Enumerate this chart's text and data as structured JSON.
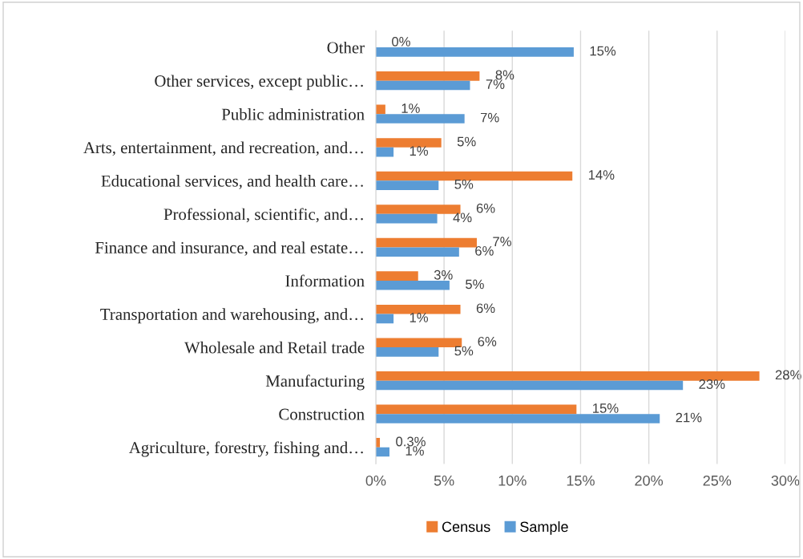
{
  "chart_data": {
    "type": "bar",
    "orientation": "horizontal",
    "categories": [
      "Other",
      "Other services, except public…",
      "Public administration",
      "Arts, entertainment, and recreation, and…",
      "Educational services, and health care…",
      "Professional, scientific, and…",
      "Finance and insurance, and real estate…",
      "Information",
      "Transportation and warehousing, and…",
      "Wholesale and Retail trade",
      "Manufacturing",
      "Construction",
      "Agriculture, forestry, fishing and…"
    ],
    "series": [
      {
        "name": "Census",
        "color": "#ed7d31",
        "values": [
          0,
          7.6,
          0.7,
          4.8,
          14.4,
          6.2,
          7.4,
          3.1,
          6.2,
          6.3,
          28.1,
          14.7,
          0.3
        ],
        "value_labels": [
          "0%",
          "8%",
          "1%",
          "5%",
          "14%",
          "6%",
          "7%",
          "3%",
          "6%",
          "6%",
          "28%",
          "15%",
          "0.3%"
        ]
      },
      {
        "name": "Sample",
        "color": "#5b9bd5",
        "values": [
          14.5,
          6.9,
          6.5,
          1.3,
          4.6,
          4.5,
          6.1,
          5.4,
          1.3,
          4.6,
          22.5,
          20.8,
          1.0
        ],
        "value_labels": [
          "15%",
          "7%",
          "7%",
          "1%",
          "5%",
          "4%",
          "6%",
          "5%",
          "1%",
          "5%",
          "23%",
          "21%",
          "1%"
        ]
      }
    ],
    "xlim": [
      0,
      30
    ],
    "xticks": [
      {
        "value": 0,
        "label": "0%"
      },
      {
        "value": 5,
        "label": "5%"
      },
      {
        "value": 10,
        "label": "10%"
      },
      {
        "value": 15,
        "label": "15%"
      },
      {
        "value": 20,
        "label": "20%"
      },
      {
        "value": 25,
        "label": "25%"
      },
      {
        "value": 30,
        "label": "30%"
      }
    ],
    "grid": "x",
    "legend": "bottom"
  }
}
